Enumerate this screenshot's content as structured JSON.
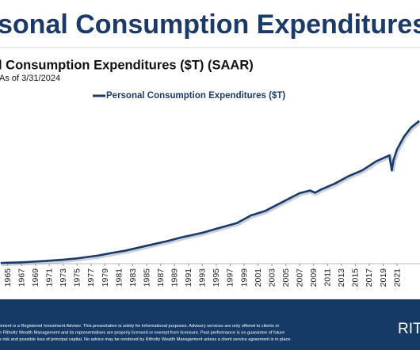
{
  "header": {
    "title": "sonal Consumption Expenditures",
    "subtitle": "l Consumption Expenditures ($T) (SAAR)",
    "date_note": "As of 3/31/2024"
  },
  "chart_data": {
    "type": "line",
    "x": [
      1964,
      1965,
      1967,
      1970,
      1973,
      1975,
      1978,
      1980,
      1982,
      1985,
      1988,
      1990,
      1993,
      1995,
      1998,
      2000,
      2002,
      2005,
      2007,
      2008.5,
      2009.2,
      2010,
      2012,
      2014,
      2016,
      2018,
      2019.9,
      2020.25,
      2020.5,
      2021,
      2022,
      2023,
      2024.2
    ],
    "series": [
      {
        "name": "Personal Consumption Expenditures ($T)",
        "color": "#1b3a68",
        "values": [
          0.41,
          0.44,
          0.5,
          0.65,
          0.85,
          1.03,
          1.4,
          1.76,
          2.07,
          2.72,
          3.35,
          3.84,
          4.45,
          4.99,
          5.76,
          6.77,
          7.35,
          8.79,
          9.75,
          10.1,
          9.8,
          10.2,
          11.0,
          12.0,
          12.8,
          14.0,
          14.8,
          12.8,
          14.2,
          15.6,
          17.3,
          18.5,
          19.4
        ]
      }
    ],
    "xlim": [
      1963.9,
      2024.3
    ],
    "ylim": [
      0,
      21.8
    ],
    "xticks": [
      1965,
      1967,
      1969,
      1971,
      1973,
      1975,
      1977,
      1979,
      1981,
      1983,
      1985,
      1987,
      1989,
      1991,
      1993,
      1995,
      1997,
      1999,
      2001,
      2003,
      2005,
      2007,
      2009,
      2011,
      2013,
      2015,
      2017,
      2019,
      2021
    ],
    "legend": "top"
  },
  "footer": {
    "disclaimer": [
      "ement is a Registered Investment Adviser. This presentation is solely for informational purposes. Advisory services are only offered to clients or",
      "e Ritholtz Wealth Management and its representatives are properly licensed or exempt from licensure. Past performance is no guarantee of future",
      "s risk and possible loss of principal capital. No advice may be rendered by Ritholtz Wealth Management unless a client service agreement is in place."
    ],
    "logo": "RIT"
  }
}
